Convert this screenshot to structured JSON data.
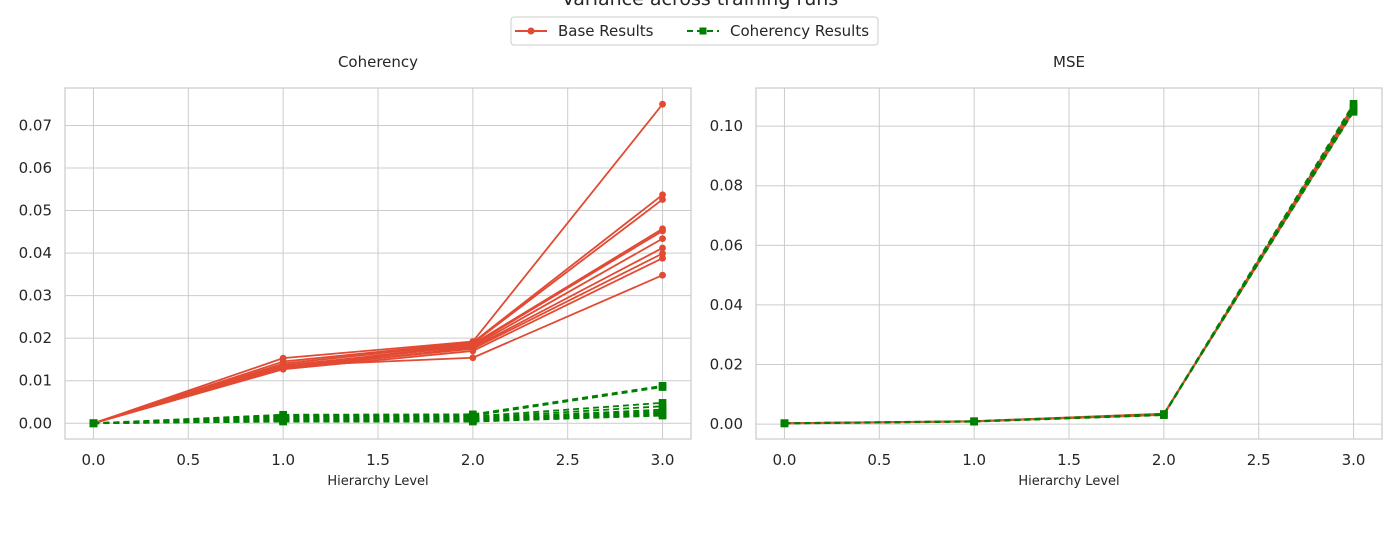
{
  "suptitle": "Variance across training runs",
  "legend": {
    "placement": "top-center",
    "entries": [
      {
        "label": "Base Results",
        "color": "#e24a33",
        "style": "solid",
        "marker": "circle"
      },
      {
        "label": "Coherency Results",
        "color": "#008000",
        "style": "dashed",
        "marker": "square"
      }
    ]
  },
  "chart_data": [
    {
      "type": "line",
      "title": "Coherency",
      "xlabel": "Hierarchy Level",
      "ylabel": "",
      "xlim": [
        -0.15,
        3.15
      ],
      "ylim": [
        -0.0037,
        0.0788
      ],
      "xticks": [
        0.0,
        0.5,
        1.0,
        1.5,
        2.0,
        2.5,
        3.0
      ],
      "xtick_labels": [
        "0.0",
        "0.5",
        "1.0",
        "1.5",
        "2.0",
        "2.5",
        "3.0"
      ],
      "yticks": [
        0.0,
        0.01,
        0.02,
        0.03,
        0.04,
        0.05,
        0.06,
        0.07
      ],
      "ytick_labels": [
        "0.00",
        "0.01",
        "0.02",
        "0.03",
        "0.04",
        "0.05",
        "0.06",
        "0.07"
      ],
      "grid": true,
      "x": [
        0,
        1,
        2,
        3
      ],
      "series": [
        {
          "group": "base",
          "values": [
            0,
            0.0153,
            0.0192,
            0.075
          ]
        },
        {
          "group": "base",
          "values": [
            0,
            0.0145,
            0.019,
            0.0537
          ]
        },
        {
          "group": "base",
          "values": [
            0,
            0.014,
            0.0188,
            0.0526
          ]
        },
        {
          "group": "base",
          "values": [
            0,
            0.0133,
            0.0186,
            0.0457
          ]
        },
        {
          "group": "base",
          "values": [
            0,
            0.013,
            0.0184,
            0.0452
          ]
        },
        {
          "group": "base",
          "values": [
            0,
            0.0136,
            0.0181,
            0.0434
          ]
        },
        {
          "group": "base",
          "values": [
            0,
            0.0128,
            0.0178,
            0.0412
          ]
        },
        {
          "group": "base",
          "values": [
            0,
            0.0131,
            0.0175,
            0.0399
          ]
        },
        {
          "group": "base",
          "values": [
            0,
            0.0127,
            0.017,
            0.0388
          ]
        },
        {
          "group": "base",
          "values": [
            0,
            0.0135,
            0.0154,
            0.0348
          ]
        },
        {
          "group": "coherency",
          "values": [
            0,
            0.002,
            0.0021,
            0.0088
          ]
        },
        {
          "group": "coherency",
          "values": [
            0,
            0.0017,
            0.0018,
            0.0085
          ]
        },
        {
          "group": "coherency",
          "values": [
            0,
            0.0015,
            0.0016,
            0.0048
          ]
        },
        {
          "group": "coherency",
          "values": [
            0,
            0.0012,
            0.0013,
            0.004
          ]
        },
        {
          "group": "coherency",
          "values": [
            0,
            0.001,
            0.0011,
            0.0032
          ]
        },
        {
          "group": "coherency",
          "values": [
            0,
            0.0008,
            0.0009,
            0.0028
          ]
        },
        {
          "group": "coherency",
          "values": [
            0,
            0.0007,
            0.0008,
            0.0025
          ]
        },
        {
          "group": "coherency",
          "values": [
            0,
            0.0006,
            0.0007,
            0.0022
          ]
        },
        {
          "group": "coherency",
          "values": [
            0,
            0.0005,
            0.0006,
            0.002
          ]
        },
        {
          "group": "coherency",
          "values": [
            0,
            0.0004,
            0.0004,
            0.0018
          ]
        }
      ]
    },
    {
      "type": "line",
      "title": "MSE",
      "xlabel": "Hierarchy Level",
      "ylabel": "",
      "xlim": [
        -0.15,
        3.15
      ],
      "ylim": [
        -0.005,
        0.1128
      ],
      "xticks": [
        0.0,
        0.5,
        1.0,
        1.5,
        2.0,
        2.5,
        3.0
      ],
      "xtick_labels": [
        "0.0",
        "0.5",
        "1.0",
        "1.5",
        "2.0",
        "2.5",
        "3.0"
      ],
      "yticks": [
        0.0,
        0.02,
        0.04,
        0.06,
        0.08,
        0.1
      ],
      "ytick_labels": [
        "0.00",
        "0.02",
        "0.04",
        "0.06",
        "0.08",
        "0.10"
      ],
      "grid": true,
      "x": [
        0,
        1,
        2,
        3
      ],
      "series": [
        {
          "group": "base",
          "values": [
            0.0003,
            0.001,
            0.0035,
            0.106
          ]
        },
        {
          "group": "base",
          "values": [
            0.0003,
            0.0009,
            0.0033,
            0.105
          ]
        },
        {
          "group": "base",
          "values": [
            0.0002,
            0.0009,
            0.0031,
            0.107
          ]
        },
        {
          "group": "coherency",
          "values": [
            0.0003,
            0.001,
            0.0034,
            0.1075
          ]
        },
        {
          "group": "coherency",
          "values": [
            0.0003,
            0.0009,
            0.0032,
            0.1055
          ]
        },
        {
          "group": "coherency",
          "values": [
            0.0002,
            0.0008,
            0.003,
            0.1065
          ]
        },
        {
          "group": "coherency",
          "values": [
            0.0003,
            0.0009,
            0.0033,
            0.1048
          ]
        }
      ]
    }
  ]
}
